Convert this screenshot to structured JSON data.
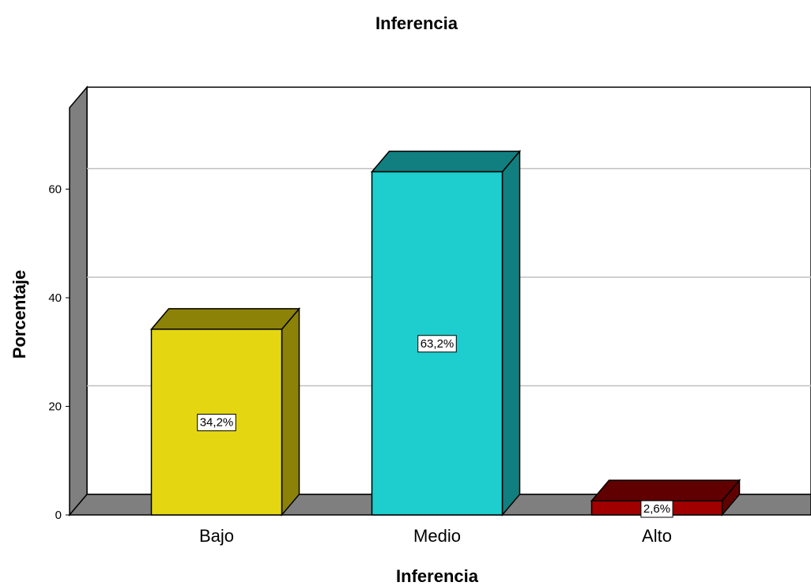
{
  "chart_data": {
    "type": "bar",
    "title": "Inferencia",
    "xlabel": "Inferencia",
    "ylabel": "Porcentaje",
    "categories": [
      "Bajo",
      "Medio",
      "Alto"
    ],
    "values": [
      34.2,
      63.2,
      2.6
    ],
    "data_labels": [
      "34,2%",
      "63,2%",
      "2,6%"
    ],
    "yticks": [
      0,
      20,
      40,
      60
    ],
    "ytick_labels": [
      "0",
      "20",
      "40",
      "60"
    ],
    "ylim": [
      0,
      75
    ],
    "grid": true,
    "style": "3d",
    "colors": {
      "front": [
        "#e4d712",
        "#1ecece",
        "#a00000"
      ],
      "side": [
        "#8c8208",
        "#117f7f",
        "#600000"
      ],
      "top": [
        "#8c8208",
        "#117f7f",
        "#600000"
      ],
      "wall": "#7f7f7f",
      "gridline": "#c0c0c0"
    }
  }
}
